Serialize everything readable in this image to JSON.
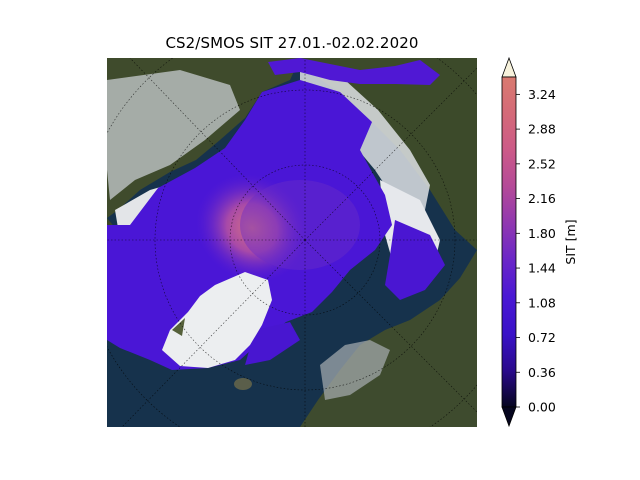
{
  "title": "CS2/SMOS SIT 27.01.-02.02.2020",
  "colorbar": {
    "label": "SIT [m]",
    "min": 0.0,
    "max": 3.42,
    "extend": "both",
    "ticks": [
      "0.00",
      "0.36",
      "0.72",
      "1.08",
      "1.44",
      "1.80",
      "2.16",
      "2.52",
      "2.88",
      "3.24"
    ],
    "tick_values": [
      0.0,
      0.36,
      0.72,
      1.08,
      1.44,
      1.8,
      2.16,
      2.52,
      2.88,
      3.24
    ],
    "colors": [
      "#05051e",
      "#2a0a8c",
      "#3a12c8",
      "#4a18d4",
      "#6a26c8",
      "#9038b0",
      "#b44a98",
      "#cc5a88",
      "#d46a78",
      "#d97a70"
    ]
  },
  "map": {
    "projection": "north-polar-stereographic",
    "colors": {
      "ocean": "#14304a",
      "land": "#3e4a2c",
      "snow": "#e6e8ec",
      "ice_low": "#4a14d8",
      "ice_high": "#d0708a"
    }
  }
}
